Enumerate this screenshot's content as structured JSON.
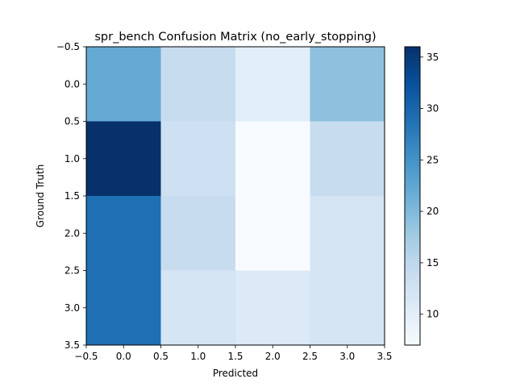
{
  "chart_data": {
    "type": "heatmap",
    "title": "spr_bench Confusion Matrix (no_early_stopping)",
    "xlabel": "Predicted",
    "ylabel": "Ground Truth",
    "x_ticks": [
      "−0.5",
      "0.0",
      "0.5",
      "1.0",
      "1.5",
      "2.0",
      "2.5",
      "3.0",
      "3.5"
    ],
    "y_ticks": [
      "−0.5",
      "0.0",
      "0.5",
      "1.0",
      "1.5",
      "2.0",
      "2.5",
      "3.0",
      "3.5"
    ],
    "xlim": [
      -0.5,
      3.5
    ],
    "ylim": [
      3.5,
      -0.5
    ],
    "matrix": [
      [
        22,
        14,
        10,
        19
      ],
      [
        36,
        13,
        7,
        14
      ],
      [
        29,
        14,
        7,
        12
      ],
      [
        29,
        12,
        11,
        12
      ]
    ],
    "colorbar": {
      "colormap": "Blues",
      "vmin": 7,
      "vmax": 36,
      "ticks": [
        "10",
        "15",
        "20",
        "25",
        "30",
        "35"
      ]
    }
  }
}
